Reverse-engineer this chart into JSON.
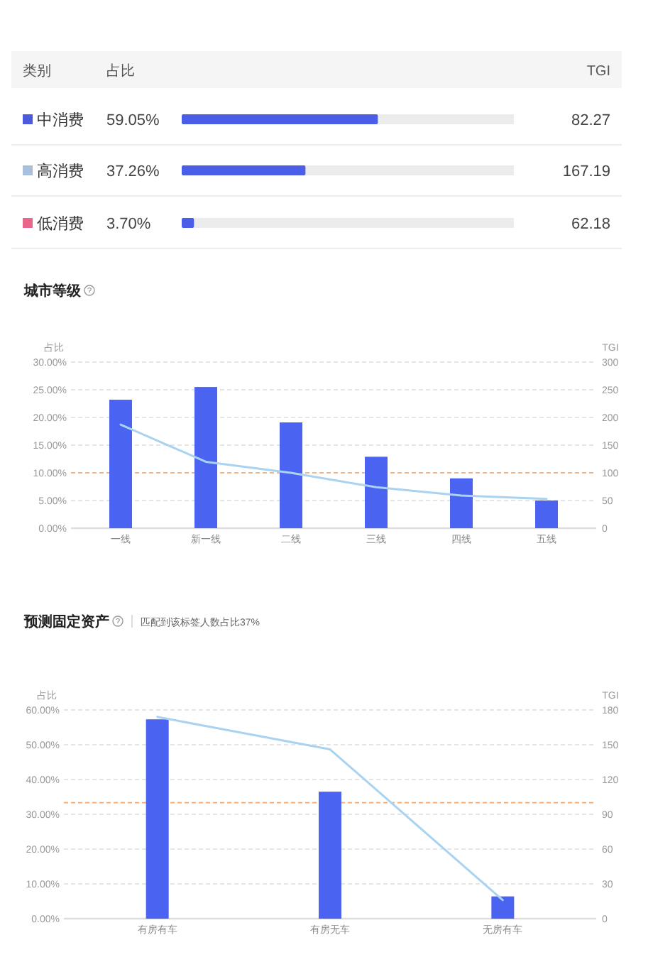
{
  "chart_data": [
    {
      "type": "bar",
      "orientation": "horizontal",
      "ylabel": "类别",
      "xlabel": "占比",
      "categories": [
        "中消费",
        "高消费",
        "低消费"
      ],
      "values": [
        59.05,
        37.26,
        3.7
      ],
      "value_labels": [
        "59.05%",
        "37.26%",
        "3.70%"
      ],
      "color": "#4a5ee8",
      "xlim": [
        0,
        100
      ],
      "tick_labels": false,
      "annotations": [
        "TGI",
        "82.27",
        "167.19",
        "62.18"
      ]
    },
    {
      "type": "bar",
      "title": "城市等级",
      "categories": [
        "一线",
        "新一线",
        "二线",
        "三线",
        "四线",
        "五线"
      ],
      "series": [
        {
          "type": "bar",
          "color": "#4a63f0",
          "values": [
            23.2,
            25.5,
            19.1,
            12.9,
            9.0,
            5.0
          ]
        },
        {
          "type": "line",
          "axis": "y2",
          "color": "#a9d3f0",
          "values": [
            187,
            120,
            100,
            74,
            59,
            53
          ]
        }
      ],
      "ylabel": "占比",
      "y2label": "TGI",
      "ylim": [
        0,
        30
      ],
      "yticks": [
        {
          "value": 0,
          "label": "0.00%"
        },
        {
          "value": 5,
          "label": "5.00%"
        },
        {
          "value": 10,
          "label": "10.00%"
        },
        {
          "value": 15,
          "label": "15.00%"
        },
        {
          "value": 20,
          "label": "20.00%"
        },
        {
          "value": 25,
          "label": "25.00%"
        },
        {
          "value": 30,
          "label": "30.00%"
        }
      ],
      "y2lim": [
        0,
        300
      ],
      "y2ticks": [
        0,
        50,
        100,
        150,
        200,
        250,
        300
      ],
      "grid": "y",
      "ref_lines": [
        {
          "axis": "y2",
          "value": 100,
          "color": "#f5a66b",
          "line_style": "dashed"
        }
      ]
    },
    {
      "type": "bar",
      "title": "预测固定资产",
      "subtitle": "匹配到该标签人数占比37%",
      "categories": [
        "有房有车",
        "有房无车",
        "无房有车"
      ],
      "series": [
        {
          "type": "bar",
          "color": "#4a63f0",
          "values": [
            57.3,
            36.5,
            6.4
          ]
        },
        {
          "type": "line",
          "axis": "y2",
          "color": "#a9d3f0",
          "values": [
            174,
            146,
            16
          ]
        }
      ],
      "ylabel": "占比",
      "y2label": "TGI",
      "ylim": [
        0,
        60
      ],
      "yticks": [
        {
          "value": 0,
          "label": "0.00%"
        },
        {
          "value": 10,
          "label": "10.00%"
        },
        {
          "value": 20,
          "label": "20.00%"
        },
        {
          "value": 30,
          "label": "30.00%"
        },
        {
          "value": 40,
          "label": "40.00%"
        },
        {
          "value": 50,
          "label": "50.00%"
        },
        {
          "value": 60,
          "label": "60.00%"
        }
      ],
      "y2lim": [
        0,
        180
      ],
      "y2ticks": [
        0,
        30,
        60,
        90,
        120,
        150,
        180
      ],
      "grid": "y",
      "ref_lines": [
        {
          "axis": "y2",
          "value": 100,
          "color": "#f5a66b",
          "line_style": "dashed"
        }
      ]
    }
  ]
}
